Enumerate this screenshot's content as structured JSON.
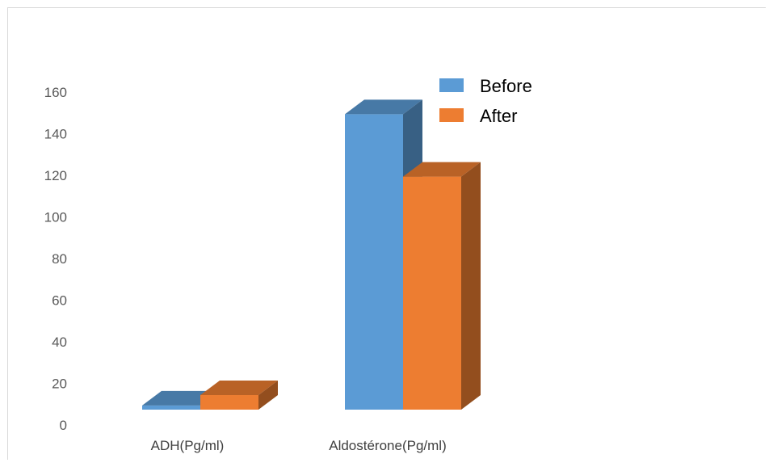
{
  "chart_data": {
    "type": "bar",
    "style": "3d-clustered",
    "categories": [
      "ADH(Pg/ml)",
      "Aldostérone(Pg/ml)"
    ],
    "series": [
      {
        "name": "Before",
        "color": "#5b9bd5",
        "values": [
          2,
          142
        ]
      },
      {
        "name": "After",
        "color": "#ed7d31",
        "values": [
          7,
          112
        ]
      }
    ],
    "y_ticks": [
      "0",
      "20",
      "40",
      "60",
      "80",
      "100",
      "120",
      "140",
      "160"
    ],
    "ylim": [
      0,
      160
    ],
    "grid": false,
    "legend_position": "top-right"
  }
}
